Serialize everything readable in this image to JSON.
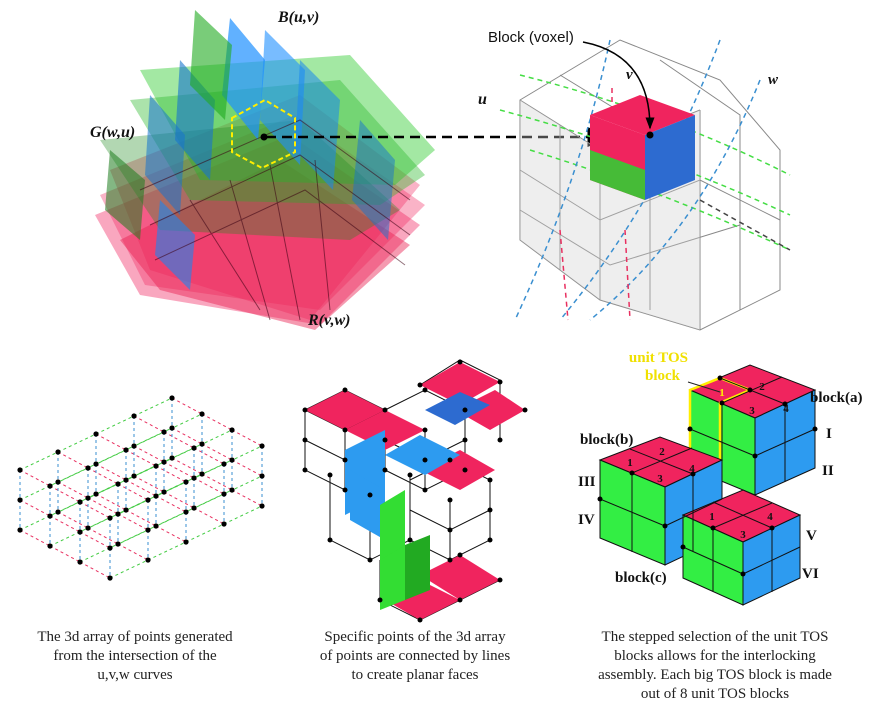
{
  "labels": {
    "b_uv": "B(u,v)",
    "g_wu": "G(w,u)",
    "r_vw": "R(v,w)",
    "block_voxel": "Block (voxel)",
    "u": "u",
    "v": "v",
    "w": "w",
    "unit_tos_1": "unit TOS",
    "unit_tos_2": "block",
    "block_a": "block(a)",
    "block_b": "block(b)",
    "block_c": "block(c)",
    "roman": [
      "I",
      "II",
      "III",
      "IV",
      "V",
      "VI"
    ],
    "face_numbers": [
      "1",
      "2",
      "3",
      "4"
    ]
  },
  "captions": {
    "left": [
      "The 3d array of points generated",
      "from the intersection of the",
      "u,v,w curves"
    ],
    "middle": [
      "Specific points of the 3d array",
      "of points are connected by lines",
      "to create planar faces"
    ],
    "right": [
      "The stepped selection of the unit TOS",
      "blocks allows for the interlocking",
      "assembly. Each big TOS block is made",
      "out of 8 unit TOS blocks"
    ]
  },
  "colors": {
    "red": "#f0245e",
    "green": "#33ee44",
    "blue": "#2d9bf0",
    "yellow": "#ffee00"
  }
}
